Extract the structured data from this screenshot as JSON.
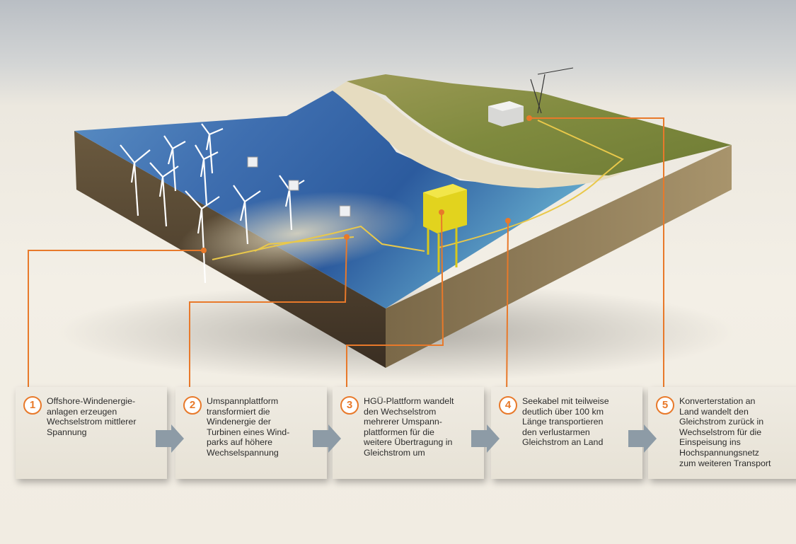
{
  "accent_color": "#e8792a",
  "arrow_color": "#8d9ba6",
  "scene_labels": [
    "Offshore wind turbines",
    "Transformer platform",
    "HVDC platform",
    "Submarine cable",
    "Onshore converter station"
  ],
  "steps": [
    {
      "number": "1",
      "text": "Offshore-Windenergie-\nanlagen erzeugen\nWechselstrom mittlerer\nSpannung"
    },
    {
      "number": "2",
      "text": "Umspannplattform\ntransformiert die\nWindenergie der\nTurbinen eines Wind-\nparks auf höhere\nWechselspannung"
    },
    {
      "number": "3",
      "text": "HGÜ-Plattform wandelt\nden Wechselstrom\nmehrerer Umspann-\nplattformen für die\nweitere Übertragung in\nGleichstrom um"
    },
    {
      "number": "4",
      "text": "Seekabel mit teilweise\ndeutlich über 100 km\nLänge transportieren\nden verlustarmen\nGleichstrom an Land"
    },
    {
      "number": "5",
      "text": "Konverterstation an\nLand wandelt den\nGleichstrom zurück in\nWechselstrom für die\nEinspeisung ins\nHochspannungsnetz\nzum weiteren Transport"
    }
  ]
}
